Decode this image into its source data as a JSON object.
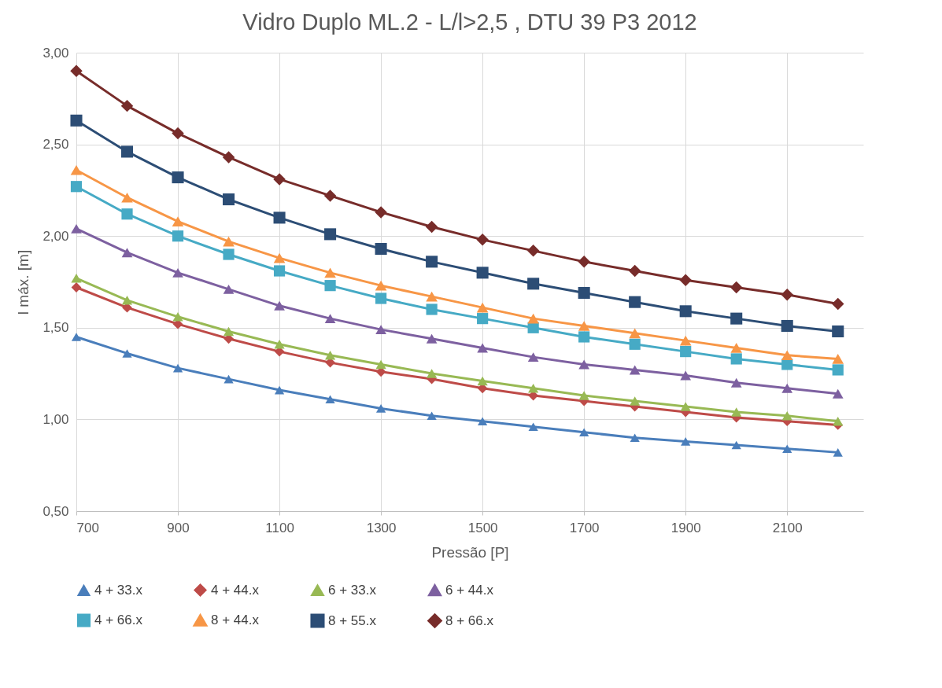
{
  "chart_data": {
    "type": "line",
    "title": "Vidro Duplo ML.2 - L/l>2,5 , DTU 39 P3 2012",
    "xlabel": "Pressão [P]",
    "ylabel": "l máx. [m]",
    "x": [
      700,
      800,
      900,
      1000,
      1100,
      1200,
      1300,
      1400,
      1500,
      1600,
      1700,
      1800,
      1900,
      2000,
      2100,
      2200
    ],
    "xlim": [
      700,
      2250
    ],
    "xticks": [
      700,
      900,
      1100,
      1300,
      1500,
      1700,
      1900,
      2100
    ],
    "ylim": [
      0.5,
      3
    ],
    "yticks": [
      {
        "value": 0.5,
        "label": "0,50"
      },
      {
        "value": 1,
        "label": "1,00"
      },
      {
        "value": 1.5,
        "label": "1,50"
      },
      {
        "value": 2,
        "label": "2,00"
      },
      {
        "value": 2.5,
        "label": "2,50"
      },
      {
        "value": 3,
        "label": "3,00"
      }
    ],
    "grid": true,
    "legend": "bottom",
    "line_style": "solid",
    "series": [
      {
        "name": "4 + 33.x",
        "color": "#4a7ebb",
        "marker": "triangle",
        "values": [
          1.45,
          1.36,
          1.28,
          1.22,
          1.16,
          1.11,
          1.06,
          1.02,
          0.99,
          0.96,
          0.93,
          0.9,
          0.88,
          0.86,
          0.84,
          0.82
        ]
      },
      {
        "name": "4 + 44.x",
        "color": "#be4b48",
        "marker": "diamond",
        "values": [
          1.72,
          1.61,
          1.52,
          1.44,
          1.37,
          1.31,
          1.26,
          1.22,
          1.17,
          1.13,
          1.1,
          1.07,
          1.04,
          1.01,
          0.99,
          0.97
        ]
      },
      {
        "name": "6 + 33.x",
        "color": "#98b954",
        "marker": "triangle",
        "values": [
          1.77,
          1.65,
          1.56,
          1.48,
          1.41,
          1.35,
          1.3,
          1.25,
          1.21,
          1.17,
          1.13,
          1.1,
          1.07,
          1.04,
          1.02,
          0.99
        ]
      },
      {
        "name": "6 + 44.x",
        "color": "#7d60a0",
        "marker": "triangle",
        "values": [
          2.04,
          1.91,
          1.8,
          1.71,
          1.62,
          1.55,
          1.49,
          1.44,
          1.39,
          1.34,
          1.3,
          1.27,
          1.24,
          1.2,
          1.17,
          1.14
        ]
      },
      {
        "name": "4 + 66.x",
        "color": "#46aac5",
        "marker": "square",
        "values": [
          2.27,
          2.12,
          2.0,
          1.9,
          1.81,
          1.73,
          1.66,
          1.6,
          1.55,
          1.5,
          1.45,
          1.41,
          1.37,
          1.33,
          1.3,
          1.27
        ]
      },
      {
        "name": "8 + 44.x",
        "color": "#f79646",
        "marker": "triangle",
        "values": [
          2.36,
          2.21,
          2.08,
          1.97,
          1.88,
          1.8,
          1.73,
          1.67,
          1.61,
          1.55,
          1.51,
          1.47,
          1.43,
          1.39,
          1.35,
          1.33
        ]
      },
      {
        "name": "8 + 55.x",
        "color": "#2c4d75",
        "marker": "square",
        "values": [
          2.63,
          2.46,
          2.32,
          2.2,
          2.1,
          2.01,
          1.93,
          1.86,
          1.8,
          1.74,
          1.69,
          1.64,
          1.59,
          1.55,
          1.51,
          1.48
        ]
      },
      {
        "name": "8 + 66.x",
        "color": "#772c2a",
        "marker": "diamond",
        "values": [
          2.9,
          2.71,
          2.56,
          2.43,
          2.31,
          2.22,
          2.13,
          2.05,
          1.98,
          1.92,
          1.86,
          1.81,
          1.76,
          1.72,
          1.68,
          1.63
        ]
      }
    ]
  }
}
